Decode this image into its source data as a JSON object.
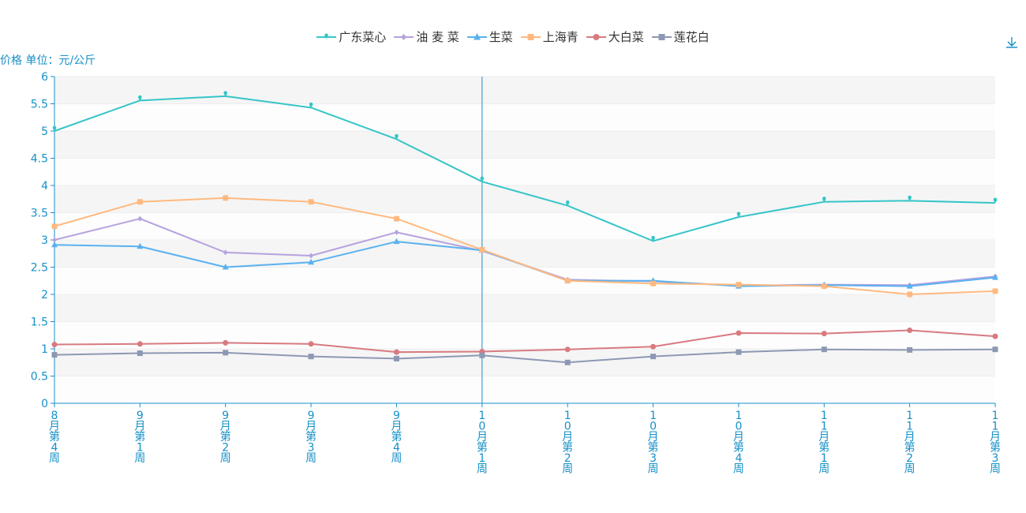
{
  "chart_data": {
    "type": "line",
    "yAxisName": "价格 单位：元/公斤",
    "ylim": [
      0,
      6
    ],
    "yTicks": [
      "0",
      "0.5",
      "1",
      "1.5",
      "2",
      "2.5",
      "3",
      "3.5",
      "4",
      "4.5",
      "5",
      "5.5",
      "6"
    ],
    "categories": [
      "8月第4周",
      "9月第1周",
      "9月第2周",
      "9月第3周",
      "9月第4周",
      "10月第1周",
      "10月第2周",
      "10月第3周",
      "10月第4周",
      "11月第1周",
      "11月第2周",
      "11月第3周"
    ],
    "highlightCategoryIndex": 5,
    "series": [
      {
        "name": "广东菜心",
        "color": "#36c5c8",
        "symbol": "pin",
        "values": [
          5.0,
          5.56,
          5.64,
          5.43,
          4.85,
          4.07,
          3.63,
          2.98,
          3.42,
          3.7,
          3.72,
          3.68
        ]
      },
      {
        "name": "油 麦 菜",
        "color": "#b6a2de",
        "symbol": "diamond",
        "values": [
          3.0,
          3.39,
          2.77,
          2.71,
          3.14,
          2.8,
          2.27,
          2.24,
          2.16,
          2.18,
          2.17,
          2.33
        ]
      },
      {
        "name": "生菜",
        "color": "#5ab1ef",
        "symbol": "triangle",
        "values": [
          2.91,
          2.88,
          2.5,
          2.59,
          2.97,
          2.81,
          2.25,
          2.25,
          2.15,
          2.17,
          2.15,
          2.31
        ]
      },
      {
        "name": "上海青",
        "color": "#ffb980",
        "symbol": "rect",
        "values": [
          3.25,
          3.7,
          3.77,
          3.7,
          3.39,
          2.82,
          2.25,
          2.2,
          2.18,
          2.15,
          2.0,
          2.06
        ]
      },
      {
        "name": "大白菜",
        "color": "#d87a80",
        "symbol": "circle",
        "values": [
          1.08,
          1.09,
          1.11,
          1.09,
          0.94,
          0.95,
          0.99,
          1.04,
          1.29,
          1.28,
          1.34,
          1.23
        ]
      },
      {
        "name": "莲花白",
        "color": "#8d98b3",
        "symbol": "square",
        "values": [
          0.89,
          0.92,
          0.93,
          0.86,
          0.82,
          0.88,
          0.75,
          0.86,
          0.94,
          0.99,
          0.98,
          0.99
        ]
      }
    ]
  }
}
